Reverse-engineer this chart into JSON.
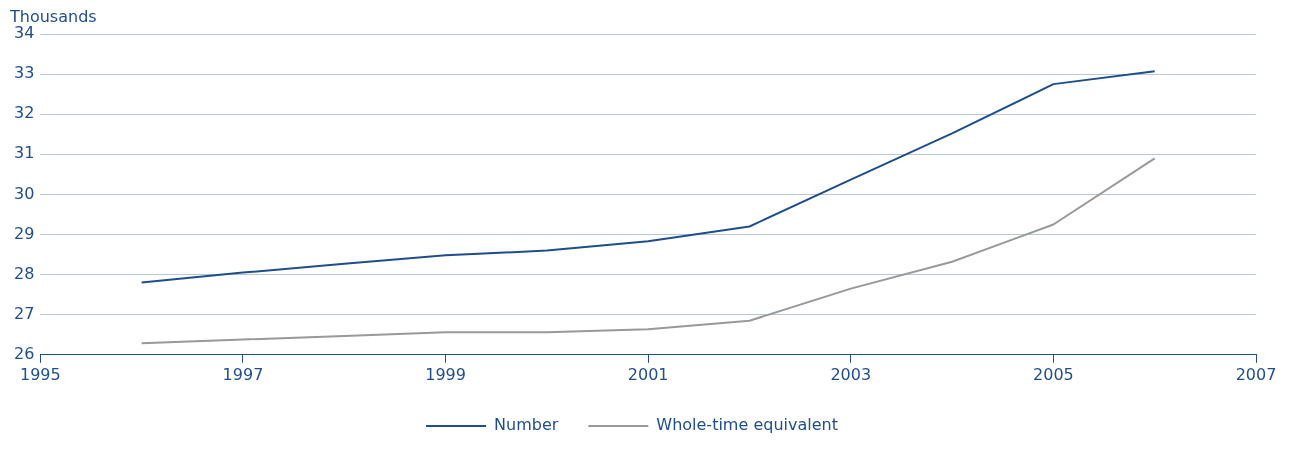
{
  "chart_data": {
    "type": "line",
    "ylabel": "Thousands",
    "x": [
      1996,
      1997,
      1998,
      1999,
      2000,
      2001,
      2002,
      2003,
      2004,
      2005,
      2006
    ],
    "series": [
      {
        "name": "Number",
        "color": "#1f4e8c",
        "values": [
          27.8,
          28.05,
          28.27,
          28.48,
          28.6,
          28.83,
          29.2,
          30.37,
          31.52,
          32.75,
          33.07
        ]
      },
      {
        "name": "Whole-time equivalent",
        "color": "#999999",
        "values": [
          26.29,
          26.38,
          26.47,
          26.56,
          26.56,
          26.64,
          26.85,
          27.65,
          28.32,
          29.25,
          30.9
        ]
      }
    ],
    "xlim": [
      1995,
      2007
    ],
    "xticks": [
      1995,
      1997,
      1999,
      2001,
      2003,
      2005,
      2007
    ],
    "ylim": [
      26,
      34
    ],
    "yticks": [
      26,
      27,
      28,
      29,
      30,
      31,
      32,
      33,
      34
    ],
    "grid": "y",
    "legend": "bottom",
    "marker": "none",
    "line_style": "solid"
  }
}
